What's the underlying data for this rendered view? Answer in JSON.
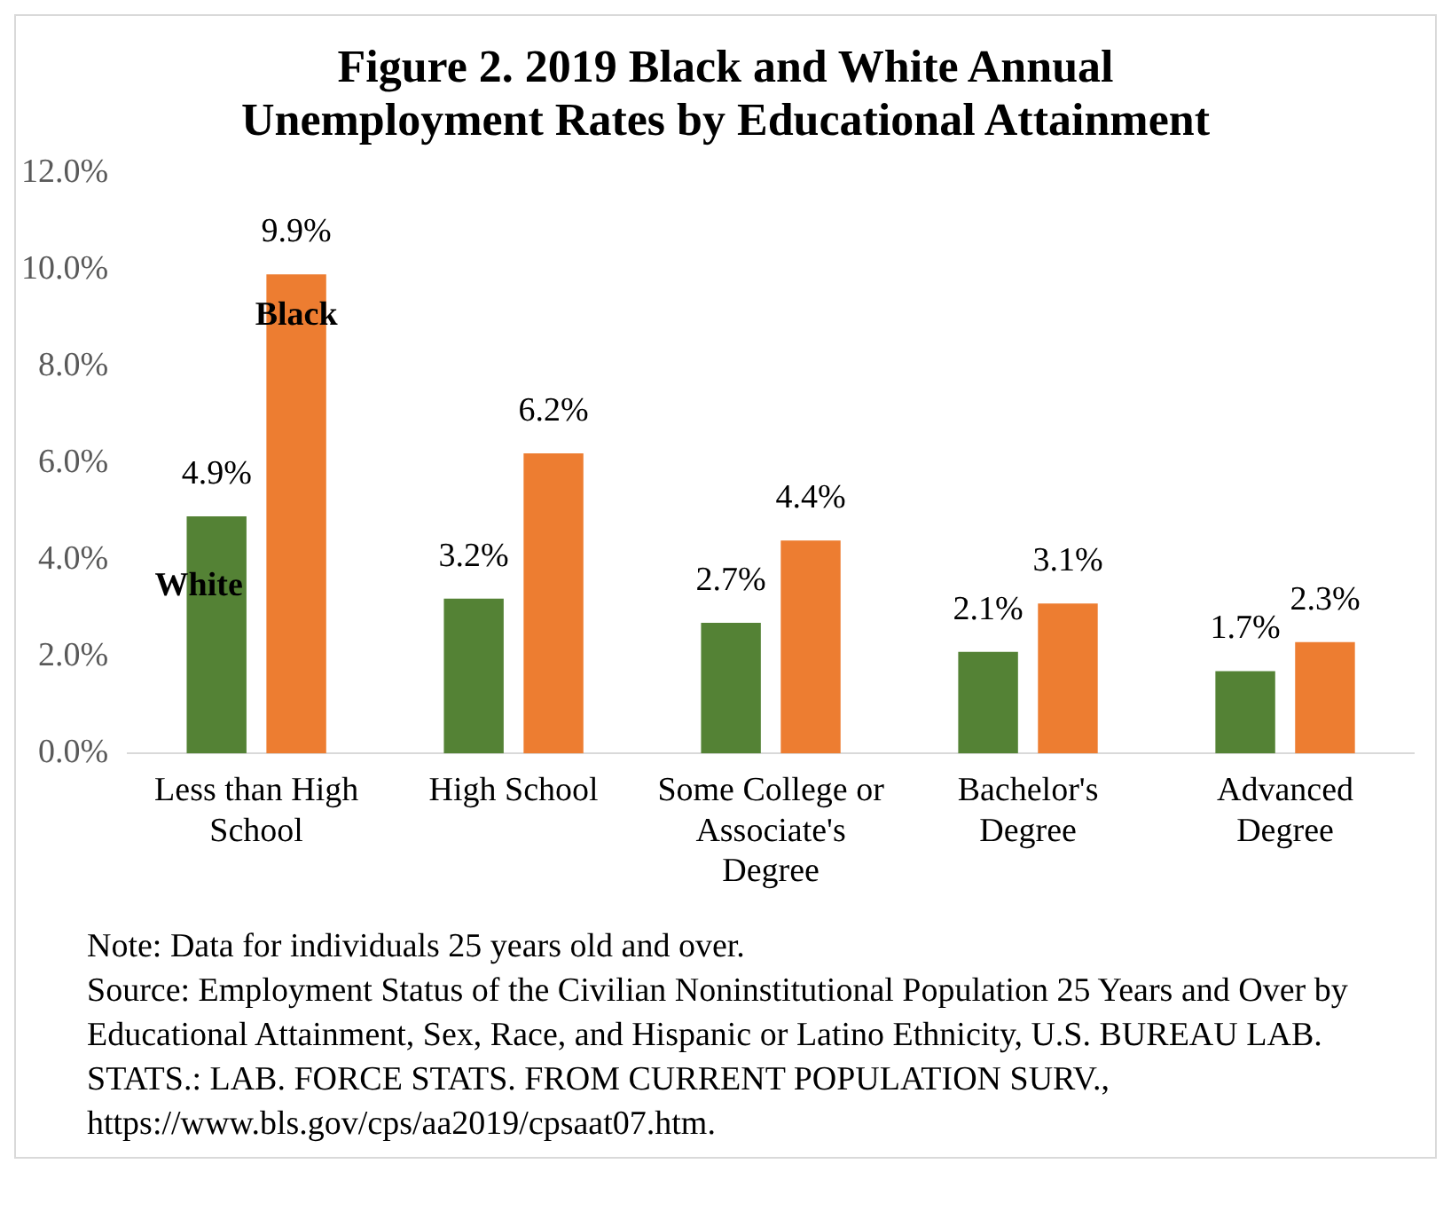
{
  "chart_data": {
    "type": "bar",
    "title": "Figure 2. 2019 Black and White Annual Unemployment Rates by Educational Attainment",
    "categories": [
      "Less than High School",
      "High School",
      "Some College or Associate's Degree",
      "Bachelor's Degree",
      "Advanced Degree"
    ],
    "series": [
      {
        "name": "White",
        "color": "#548235",
        "values": [
          4.9,
          3.2,
          2.7,
          2.1,
          1.7
        ],
        "value_labels": [
          "4.9%",
          "3.2%",
          "2.7%",
          "2.1%",
          "1.7%"
        ]
      },
      {
        "name": "Black",
        "color": "#ed7d31",
        "values": [
          9.9,
          6.2,
          4.4,
          3.1,
          2.3
        ],
        "value_labels": [
          "9.9%",
          "6.2%",
          "4.4%",
          "3.1%",
          "2.3%"
        ]
      }
    ],
    "ylim": [
      0,
      12
    ],
    "yticks": [
      {
        "value": 0,
        "label": "0.0%"
      },
      {
        "value": 2,
        "label": "2.0%"
      },
      {
        "value": 4,
        "label": "4.0%"
      },
      {
        "value": 6,
        "label": "6.0%"
      },
      {
        "value": 8,
        "label": "8.0%"
      },
      {
        "value": 10,
        "label": "10.0%"
      },
      {
        "value": 12,
        "label": "12.0%"
      }
    ],
    "grid": false,
    "legend": false,
    "annotations": [
      "Note: Data for individuals 25 years old and over.",
      "Source: Employment Status of the Civilian Noninstitutional Population 25 Years and Over by Educational Attainment, Sex, Race, and Hispanic or Latino Ethnicity, U.S. BUREAU LAB. STATS.: LAB. FORCE STATS. FROM CURRENT POPULATION SURV., https://www.bls.gov/cps/aa2019/cpsaat07.htm."
    ]
  }
}
